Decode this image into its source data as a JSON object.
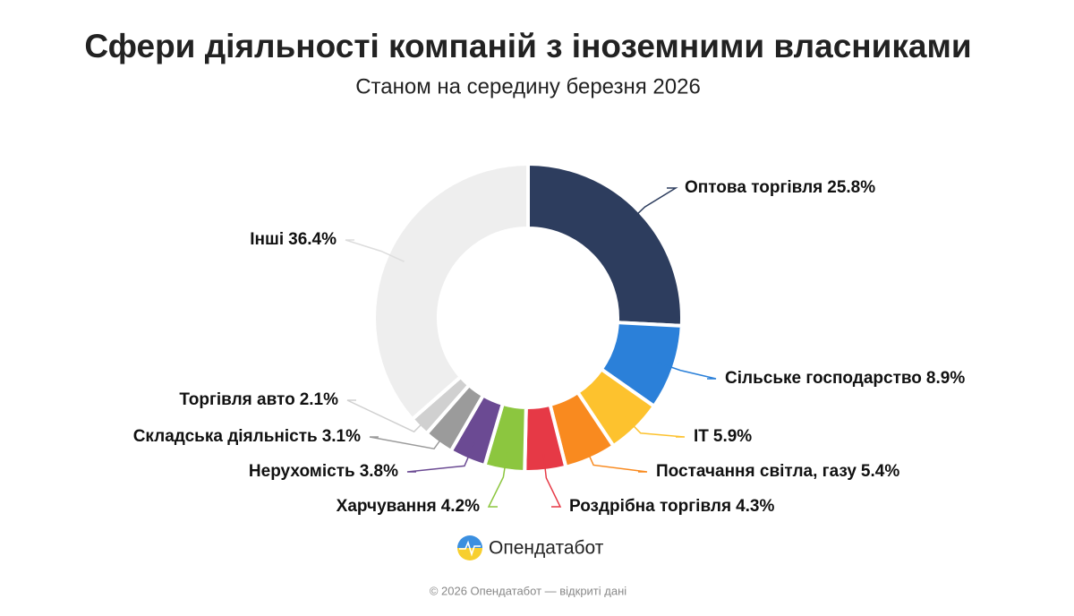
{
  "chart_data": {
    "type": "donut",
    "title": "Сфери діяльності компаній з іноземними власниками",
    "subtitle": "Станом на середину березня 2026",
    "categories": [
      "Оптова торгівля",
      "Сільське господарство",
      "IT",
      "Постачання світла, газу",
      "Роздрібна торгівля",
      "Харчування",
      "Нерухомість",
      "Складська діяльність",
      "Торгівля авто",
      "Інші"
    ],
    "values": [
      25.8,
      8.9,
      5.9,
      5.4,
      4.3,
      4.2,
      3.8,
      3.1,
      2.1,
      36.4
    ],
    "value_labels": [
      "25.8%",
      "8.9%",
      "5.9%",
      "5.4%",
      "4.3%",
      "4.2%",
      "3.8%",
      "3.1%",
      "2.1%",
      "36.4%"
    ],
    "colors": [
      "#2d3d5e",
      "#2b80d9",
      "#fdc22e",
      "#f98a1f",
      "#e63946",
      "#8cc63f",
      "#6b4a93",
      "#9b9b9b",
      "#d0d0d0",
      "#eeeeee"
    ],
    "brand": "Опендатабот",
    "footer": "© 2026 Опендатабот — відкриті дані"
  }
}
